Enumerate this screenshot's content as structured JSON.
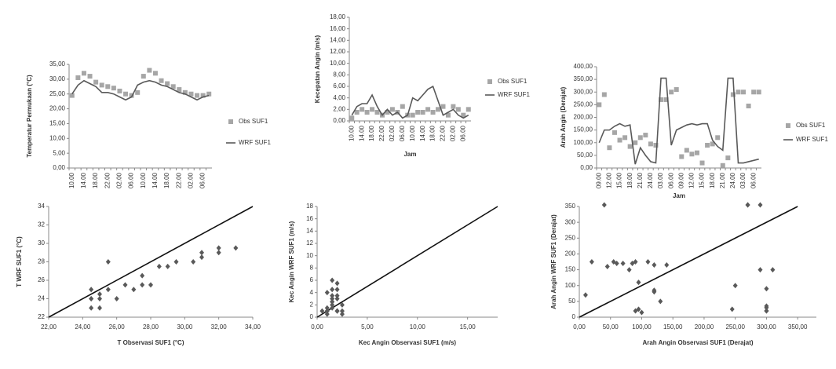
{
  "chart_data": [
    {
      "type": "line",
      "y_label": "Temperatur Permukaan (°C)",
      "categories": [
        "10.00",
        null,
        "14.00",
        null,
        "18.00",
        null,
        "22.00",
        null,
        "02.00",
        null,
        "06.00",
        null,
        "10.00",
        null,
        "14.00",
        null,
        "18.00",
        null,
        "22.00",
        null,
        "02.00",
        null,
        "06.00",
        null
      ],
      "series": [
        {
          "name": "Obs SUF1",
          "color": "#a6a6a6",
          "style": "markers",
          "values": [
            24.5,
            30.5,
            32.0,
            31.0,
            29.0,
            28.0,
            27.5,
            27.0,
            26.0,
            25.0,
            24.5,
            25.5,
            31.0,
            33.0,
            32.0,
            29.5,
            28.5,
            27.5,
            26.5,
            25.5,
            25.0,
            24.5,
            24.5,
            25.0
          ]
        },
        {
          "name": "WRF SUF1",
          "color": "#595959",
          "style": "line",
          "values": [
            25.0,
            28.0,
            29.5,
            28.5,
            27.5,
            25.5,
            25.5,
            25.0,
            24.0,
            23.0,
            24.0,
            28.0,
            29.0,
            29.5,
            29.0,
            28.0,
            27.5,
            26.5,
            25.5,
            25.0,
            24.0,
            23.0,
            24.0,
            24.5
          ]
        }
      ],
      "ylim": [
        0,
        35
      ],
      "yticks": [
        {
          "value": 0,
          "label": "0,00"
        },
        {
          "value": 5,
          "label": "5,00"
        },
        {
          "value": 10,
          "label": "10,00"
        },
        {
          "value": 15,
          "label": "15,00"
        },
        {
          "value": 20,
          "label": "20,00"
        },
        {
          "value": 25,
          "label": "25,00"
        },
        {
          "value": 30,
          "label": "30,00"
        },
        {
          "value": 35,
          "label": "35,00"
        }
      ],
      "grid": false,
      "legend": "right"
    },
    {
      "type": "line",
      "y_label": "Kecepatan Angin (m/s)",
      "x_label": "Jam",
      "categories": [
        "10.00",
        null,
        "14.00",
        null,
        "18.00",
        null,
        "22.00",
        null,
        "02.00",
        null,
        "06.00",
        null,
        "10.00",
        null,
        "14.00",
        null,
        "18.00",
        null,
        "22.00",
        null,
        "02.00",
        null,
        "06.00",
        null
      ],
      "series": [
        {
          "name": "Obs SUF1",
          "color": "#a6a6a6",
          "style": "markers",
          "values": [
            0.5,
            1.5,
            2.0,
            1.5,
            2.0,
            1.5,
            1.0,
            1.5,
            2.0,
            1.5,
            2.5,
            1.0,
            1.0,
            1.5,
            1.5,
            2.0,
            1.5,
            2.0,
            2.5,
            1.0,
            2.5,
            2.0,
            1.0,
            2.0
          ]
        },
        {
          "name": "WRF SUF1",
          "color": "#595959",
          "style": "line",
          "values": [
            1.0,
            2.5,
            3.0,
            3.0,
            4.5,
            2.5,
            1.0,
            2.0,
            1.0,
            1.5,
            0.5,
            1.0,
            4.0,
            3.5,
            4.5,
            5.5,
            6.0,
            3.5,
            1.0,
            1.5,
            2.0,
            1.0,
            0.5,
            1.0
          ]
        }
      ],
      "ylim": [
        0,
        18
      ],
      "yticks": [
        {
          "value": 0,
          "label": "0,00"
        },
        {
          "value": 2,
          "label": "2,00"
        },
        {
          "value": 4,
          "label": "4,00"
        },
        {
          "value": 6,
          "label": "6,00"
        },
        {
          "value": 8,
          "label": "8,00"
        },
        {
          "value": 10,
          "label": "10,00"
        },
        {
          "value": 12,
          "label": "12,00"
        },
        {
          "value": 14,
          "label": "14,00"
        },
        {
          "value": 16,
          "label": "16,00"
        },
        {
          "value": 18,
          "label": "18,00"
        }
      ],
      "grid": false,
      "legend": "right"
    },
    {
      "type": "line",
      "y_label": "Arah Angin (Derajat)",
      "x_label": "Jam",
      "categories": [
        "09.00",
        null,
        "12.00",
        null,
        "15.00",
        null,
        "18.00",
        null,
        "21.00",
        null,
        "24.00",
        null,
        "03.00",
        null,
        "06.00",
        null,
        "09.00",
        null,
        "12.00",
        null,
        "15.00",
        null,
        "18.00",
        null,
        "21.00",
        null,
        "24.00",
        null,
        "03.00",
        null,
        "06.00",
        null
      ],
      "series": [
        {
          "name": "Obs SUF1",
          "color": "#a6a6a6",
          "style": "markers",
          "values": [
            250,
            290,
            80,
            140,
            110,
            120,
            85,
            100,
            120,
            130,
            95,
            90,
            270,
            270,
            300,
            310,
            45,
            70,
            55,
            60,
            20,
            90,
            95,
            120,
            10,
            40,
            290,
            300,
            300,
            245,
            300,
            300
          ]
        },
        {
          "name": "WRF SUF1",
          "color": "#595959",
          "style": "line",
          "values": [
            100,
            150,
            150,
            165,
            175,
            165,
            170,
            15,
            80,
            50,
            25,
            20,
            355,
            355,
            90,
            150,
            160,
            170,
            175,
            170,
            175,
            175,
            110,
            85,
            70,
            355,
            355,
            20,
            20,
            25,
            30,
            35
          ]
        }
      ],
      "ylim": [
        0,
        400
      ],
      "yticks": [
        {
          "value": 0,
          "label": "0,00"
        },
        {
          "value": 50,
          "label": "50,00"
        },
        {
          "value": 100,
          "label": "100,00"
        },
        {
          "value": 150,
          "label": "150,00"
        },
        {
          "value": 200,
          "label": "200,00"
        },
        {
          "value": 250,
          "label": "250,00"
        },
        {
          "value": 300,
          "label": "300,00"
        },
        {
          "value": 350,
          "label": "350,00"
        },
        {
          "value": 400,
          "label": "400,00"
        }
      ],
      "grid": false,
      "legend": "right"
    },
    {
      "type": "scatter",
      "y_label": "T WRF SUF1 (°C)",
      "x_label": "T Observasi SUF1 (°C)",
      "color": "#595959",
      "identity_line": true,
      "x": [
        24.5,
        30.5,
        32.0,
        31.0,
        29.0,
        28.0,
        27.5,
        27.0,
        26.0,
        25.0,
        24.5,
        25.5,
        31.0,
        33.0,
        32.0,
        29.5,
        28.5,
        27.5,
        26.5,
        25.5,
        25.0,
        24.5,
        24.5,
        25.0
      ],
      "values": [
        25.0,
        28.0,
        29.5,
        28.5,
        27.5,
        25.5,
        25.5,
        25.0,
        24.0,
        23.0,
        24.0,
        28.0,
        29.0,
        29.5,
        29.0,
        28.0,
        27.5,
        26.5,
        25.5,
        25.0,
        24.0,
        23.0,
        24.0,
        24.5
      ],
      "xlim": [
        22,
        34
      ],
      "xticks": [
        {
          "value": 22,
          "label": "22,00"
        },
        {
          "value": 24,
          "label": "24,00"
        },
        {
          "value": 26,
          "label": "26,00"
        },
        {
          "value": 28,
          "label": "28,00"
        },
        {
          "value": 30,
          "label": "30,00"
        },
        {
          "value": 32,
          "label": "32,00"
        },
        {
          "value": 34,
          "label": "34,00"
        }
      ],
      "ylim": [
        22,
        34
      ],
      "yticks": [
        22,
        24,
        26,
        28,
        30,
        32,
        34
      ],
      "grid": false
    },
    {
      "type": "scatter",
      "y_label": "Kec Angin WRF SUF1 (m/s)",
      "x_label": "Kec Angin Observasi SUF1 (m/s)",
      "color": "#595959",
      "identity_line": true,
      "x": [
        0.5,
        1.5,
        2.0,
        1.5,
        2.0,
        1.5,
        1.0,
        1.5,
        2.0,
        1.5,
        2.5,
        1.0,
        1.0,
        1.5,
        1.5,
        2.0,
        1.5,
        2.0,
        2.5,
        1.0,
        2.5,
        2.0,
        1.0,
        2.0
      ],
      "values": [
        1.0,
        2.5,
        3.0,
        3.0,
        4.5,
        2.5,
        1.0,
        2.0,
        1.0,
        1.5,
        0.5,
        1.0,
        4.0,
        3.5,
        4.5,
        5.5,
        6.0,
        3.5,
        1.0,
        1.5,
        2.0,
        1.0,
        0.5,
        1.0
      ],
      "xlim": [
        0,
        18
      ],
      "xticks": [
        {
          "value": 0,
          "label": "0,00"
        },
        {
          "value": 5,
          "label": "5,00"
        },
        {
          "value": 10,
          "label": "10,00"
        },
        {
          "value": 15,
          "label": "15,00"
        }
      ],
      "ylim": [
        0,
        18
      ],
      "yticks": [
        0,
        2,
        4,
        6,
        8,
        10,
        12,
        14,
        16,
        18
      ],
      "grid": false
    },
    {
      "type": "scatter",
      "y_label": "Arah Angin WRF SUF1 (Derajat)",
      "x_label": "Arah Angin Observasi SUF1 (Derajat)",
      "color": "#595959",
      "identity_line": true,
      "x": [
        250,
        290,
        80,
        140,
        110,
        120,
        85,
        100,
        120,
        130,
        95,
        90,
        270,
        270,
        300,
        310,
        45,
        70,
        55,
        60,
        20,
        90,
        95,
        120,
        10,
        40,
        290,
        300,
        300,
        245,
        300,
        300
      ],
      "values": [
        100,
        150,
        150,
        165,
        175,
        165,
        170,
        15,
        80,
        50,
        25,
        20,
        355,
        355,
        90,
        150,
        160,
        170,
        175,
        170,
        175,
        175,
        110,
        85,
        70,
        355,
        355,
        20,
        20,
        25,
        30,
        35
      ],
      "xlim": [
        0,
        380
      ],
      "xticks": [
        {
          "value": 0,
          "label": "0,00"
        },
        {
          "value": 50,
          "label": "50,00"
        },
        {
          "value": 100,
          "label": "100,00"
        },
        {
          "value": 150,
          "label": "150,00"
        },
        {
          "value": 200,
          "label": "200,00"
        },
        {
          "value": 250,
          "label": "250,00"
        },
        {
          "value": 300,
          "label": "300,00"
        },
        {
          "value": 350,
          "label": "350,00"
        }
      ],
      "ylim": [
        0,
        350
      ],
      "yticks": [
        0,
        50,
        100,
        150,
        200,
        250,
        300,
        350
      ],
      "grid": false
    }
  ]
}
